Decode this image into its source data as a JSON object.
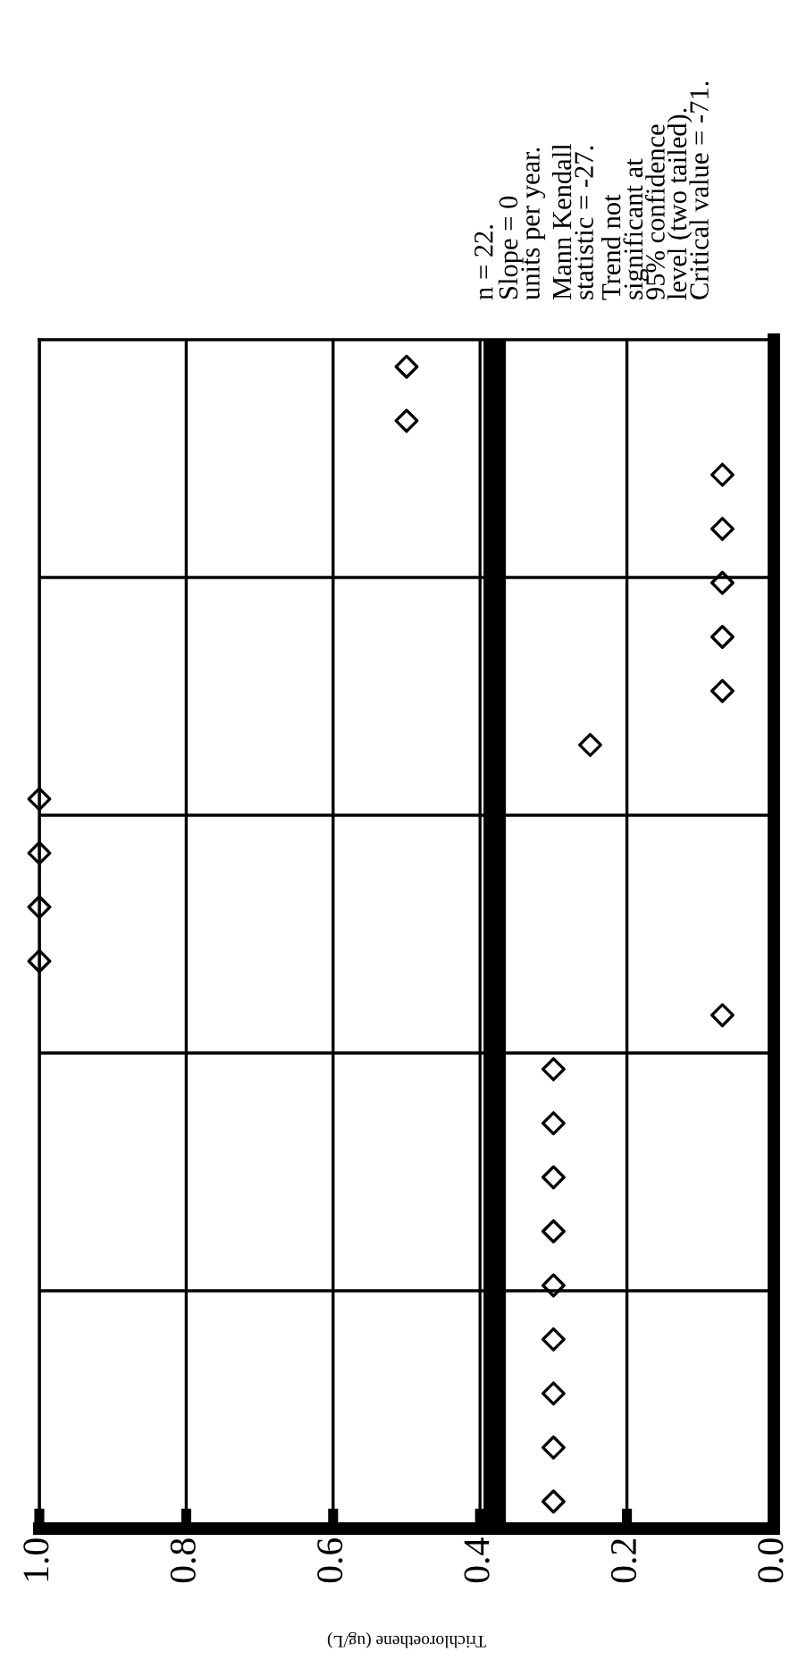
{
  "chart_data": {
    "type": "scatter",
    "orientation": "horizontal",
    "xlabel": "Trichloroethene (ug/L)",
    "categories": [
      null,
      null,
      null,
      null,
      null,
      null,
      null,
      null,
      null,
      null,
      null,
      null,
      null,
      null,
      null,
      null,
      null,
      null,
      null,
      null,
      null,
      null
    ],
    "series": [
      {
        "color": "#000000",
        "values": [
          0.5,
          0.5,
          0.07,
          0.07,
          0.07,
          0.07,
          0.07,
          0.25,
          1.0,
          1.0,
          1.0,
          1.0,
          0.07,
          0.3,
          0.3,
          0.3,
          0.3,
          0.3,
          0.3,
          0.3,
          0.3,
          0.3
        ]
      }
    ],
    "xlim": [
      1.0,
      0
    ],
    "xticks": [
      {
        "value": 1.0,
        "label": "1.0"
      },
      {
        "value": 0.8,
        "label": "0.8"
      },
      {
        "value": 0.6,
        "label": "0.6"
      },
      {
        "value": 0.4,
        "label": "0.4"
      },
      {
        "value": 0.2,
        "label": "0.2"
      },
      {
        "value": 0.0,
        "label": "0.0"
      }
    ],
    "ref_lines": [
      {
        "axis": "x",
        "value": 0.38,
        "color": "#000000"
      }
    ],
    "marker": "diamond",
    "grid": true,
    "annotations": [
      "n = 22.",
      "Slope = 0\nunits per year.",
      "Mann Kendall\nstatistic = -27.",
      "Trend not\nsignificant at\n95% confidence\nlevel (two tailed).\nCritical value = -71."
    ]
  }
}
